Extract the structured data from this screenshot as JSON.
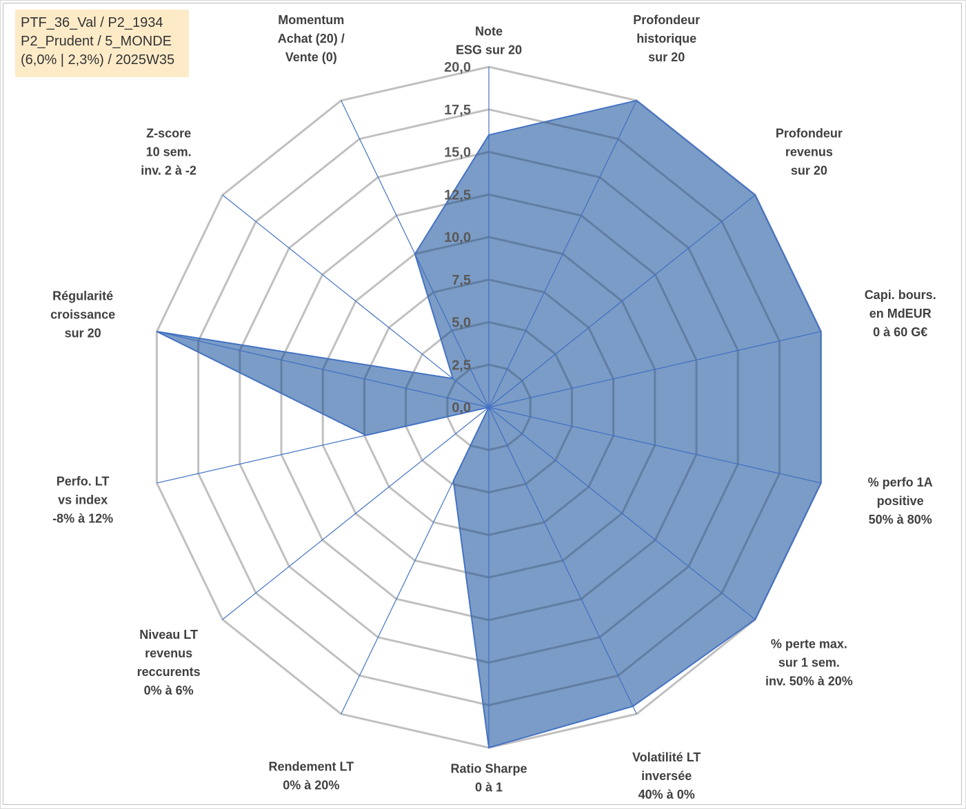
{
  "info_box": {
    "line1": "PTF_36_Val / P2_1934",
    "line2": "P2_Prudent / 5_MONDE",
    "line3": "(6,0% | 2,3%) / 2025W35"
  },
  "colors": {
    "fill": "#5a83b8",
    "stroke": "#4472c4",
    "grid": "#c0c0c0",
    "fill_grid": "#556f8f"
  },
  "chart_data": {
    "type": "radar",
    "rmin": 0,
    "rmax": 20,
    "grid": true,
    "ticks": [
      "0,0",
      "2,5",
      "5,0",
      "7,5",
      "10,0",
      "12,5",
      "15,0",
      "17,5",
      "20,0"
    ],
    "axes": [
      {
        "label": [
          "Note",
          "ESG sur 20"
        ]
      },
      {
        "label": [
          "Profondeur",
          "historique",
          "sur 20"
        ]
      },
      {
        "label": [
          "Profondeur",
          "revenus",
          "sur 20"
        ]
      },
      {
        "label": [
          "Capi. bours.",
          "en MdEUR",
          "0 à 60 G€"
        ]
      },
      {
        "label": [
          "% perfo 1A",
          "positive",
          "50% à 80%"
        ]
      },
      {
        "label": [
          "% perte max.",
          "sur 1 sem.",
          "inv. 50% à 20%"
        ]
      },
      {
        "label": [
          "Volatilité LT",
          "inversée",
          "40% à 0%"
        ]
      },
      {
        "label": [
          "Ratio Sharpe",
          "0 à 1"
        ]
      },
      {
        "label": [
          "Rendement LT",
          "0% à 20%"
        ]
      },
      {
        "label": [
          "Niveau LT",
          "revenus",
          "reccurents",
          "0% à 6%"
        ]
      },
      {
        "label": [
          "Perfo. LT",
          "vs index",
          "-8% à 12%"
        ]
      },
      {
        "label": [
          "Régularité",
          "croissance",
          "sur 20"
        ]
      },
      {
        "label": [
          "Z-score",
          "10 sem.",
          "inv. 2 à -2"
        ]
      },
      {
        "label": [
          "Momentum",
          "Achat (20) /",
          "Vente (0)"
        ]
      }
    ],
    "series": [
      {
        "values": [
          16.0,
          20.0,
          20.0,
          20.0,
          20.0,
          20.0,
          19.5,
          20.0,
          4.8,
          0.0,
          7.4,
          20.0,
          2.7,
          10.0
        ]
      }
    ]
  }
}
